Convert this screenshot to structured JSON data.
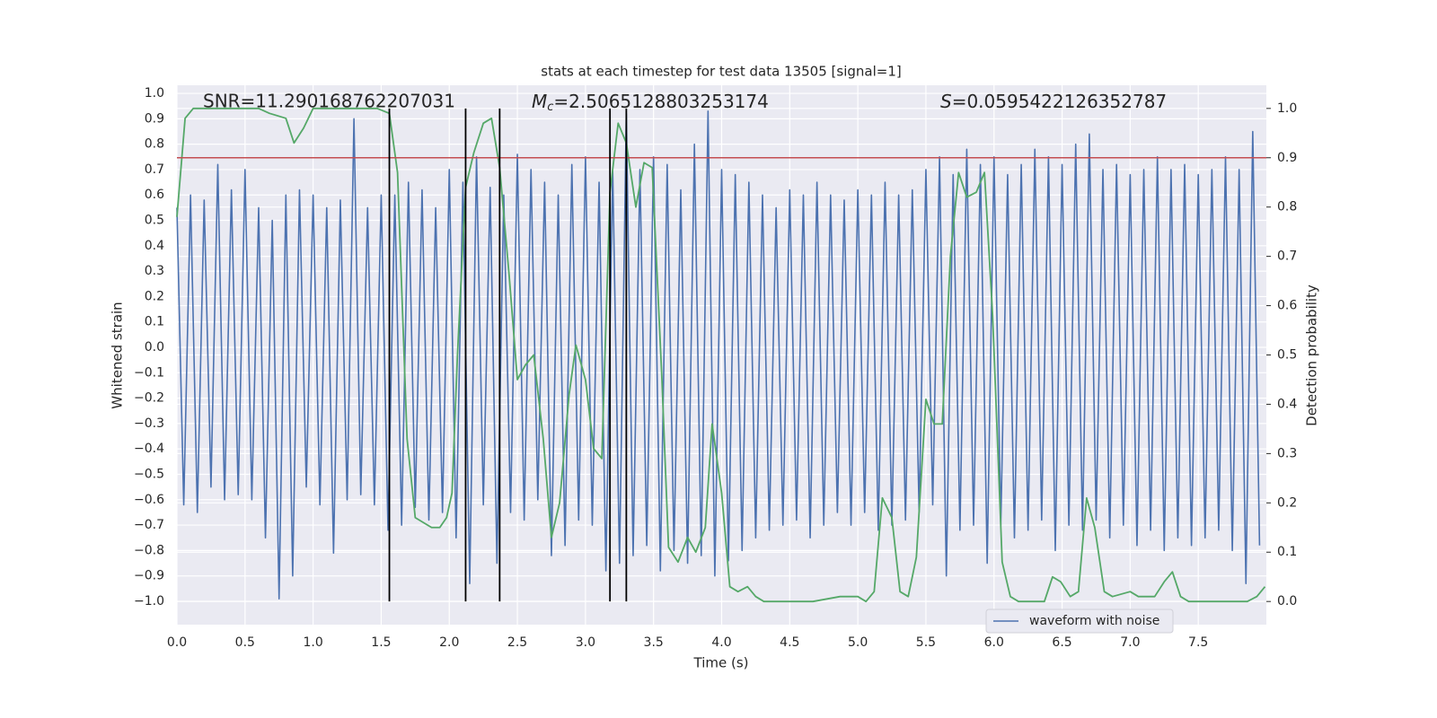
{
  "chart_data": {
    "type": "line",
    "title": "stats at each timestep for test data 13505 [signal=1]",
    "x_label": "Time (s)",
    "y_label": "Whitened strain",
    "y2_label": "Detection probability",
    "annotations": [
      {
        "text": "SNR=11.290168762207031"
      },
      {
        "symbol": "M",
        "subscript": "c",
        "text": "=2.5065128803253174"
      },
      {
        "symbol": "S",
        "text": "=0.0595422126352787"
      }
    ],
    "xlim": [
      0,
      8.0
    ],
    "ylim": [
      -1.092,
      1.032
    ],
    "y2lim": [
      -0.047,
      1.047
    ],
    "xticks": [
      {
        "value": 0,
        "label": "0.0"
      },
      0.5,
      {
        "value": 1,
        "label": "1.0"
      },
      1.5,
      {
        "value": 2,
        "label": "2.0"
      },
      2.5,
      {
        "value": 3,
        "label": "3.0"
      },
      3.5,
      {
        "value": 4,
        "label": "4.0"
      },
      4.5,
      {
        "value": 5,
        "label": "5.0"
      },
      5.5,
      {
        "value": 6,
        "label": "6.0"
      },
      6.5,
      {
        "value": 7,
        "label": "7.0"
      },
      7.5
    ],
    "yticks": [
      {
        "value": -1.0,
        "label": "−1.0"
      },
      {
        "value": -0.9,
        "label": "−0.9"
      },
      {
        "value": -0.8,
        "label": "−0.8"
      },
      {
        "value": -0.7,
        "label": "−0.7"
      },
      {
        "value": -0.6,
        "label": "−0.6"
      },
      {
        "value": -0.5,
        "label": "−0.5"
      },
      {
        "value": -0.4,
        "label": "−0.4"
      },
      {
        "value": -0.3,
        "label": "−0.3"
      },
      {
        "value": -0.2,
        "label": "−0.2"
      },
      {
        "value": -0.1,
        "label": "−0.1"
      },
      {
        "value": 0,
        "label": "0.0"
      },
      0.1,
      0.2,
      0.3,
      0.4,
      0.5,
      0.6,
      0.7,
      0.8,
      0.9,
      {
        "value": 1,
        "label": "1.0"
      }
    ],
    "y2ticks": [
      {
        "value": 0,
        "label": "0.0"
      },
      0.1,
      0.2,
      0.3,
      0.4,
      0.5,
      0.6,
      0.7,
      0.8,
      0.9,
      {
        "value": 1,
        "label": "1.0"
      }
    ],
    "grid": true,
    "legend": "lower right",
    "series": [
      {
        "name": "waveform with noise",
        "color": "#4c72b0",
        "axis": "y",
        "x": [
          0.0,
          0.05,
          0.1,
          0.15,
          0.2,
          0.25,
          0.3,
          0.35,
          0.4,
          0.45,
          0.5,
          0.55,
          0.6,
          0.65,
          0.7,
          0.75,
          0.8,
          0.85,
          0.9,
          0.95,
          1.0,
          1.05,
          1.1,
          1.15,
          1.2,
          1.25,
          1.3,
          1.35,
          1.4,
          1.45,
          1.5,
          1.55,
          1.6,
          1.65,
          1.7,
          1.75,
          1.8,
          1.85,
          1.9,
          1.95,
          2.0,
          2.05,
          2.1,
          2.15,
          2.2,
          2.25,
          2.3,
          2.35,
          2.4,
          2.45,
          2.5,
          2.55,
          2.6,
          2.65,
          2.7,
          2.75,
          2.8,
          2.85,
          2.9,
          2.95,
          3.0,
          3.05,
          3.1,
          3.15,
          3.2,
          3.25,
          3.3,
          3.35,
          3.4,
          3.45,
          3.5,
          3.55,
          3.6,
          3.65,
          3.7,
          3.75,
          3.8,
          3.85,
          3.9,
          3.95,
          4.0,
          4.05,
          4.1,
          4.15,
          4.2,
          4.25,
          4.3,
          4.35,
          4.4,
          4.45,
          4.5,
          4.55,
          4.6,
          4.65,
          4.7,
          4.75,
          4.8,
          4.85,
          4.9,
          4.95,
          5.0,
          5.05,
          5.1,
          5.15,
          5.2,
          5.25,
          5.3,
          5.35,
          5.4,
          5.45,
          5.5,
          5.55,
          5.6,
          5.65,
          5.7,
          5.75,
          5.8,
          5.85,
          5.9,
          5.95,
          6.0,
          6.05,
          6.1,
          6.15,
          6.2,
          6.25,
          6.3,
          6.35,
          6.4,
          6.45,
          6.5,
          6.55,
          6.6,
          6.65,
          6.7,
          6.75,
          6.8,
          6.85,
          6.9,
          6.95,
          7.0,
          7.05,
          7.1,
          7.15,
          7.2,
          7.25,
          7.3,
          7.35,
          7.4,
          7.45,
          7.5,
          7.55,
          7.6,
          7.65,
          7.7,
          7.75,
          7.8,
          7.85,
          7.9,
          7.95
        ],
        "values": [
          0.55,
          -0.62,
          0.6,
          -0.65,
          0.58,
          -0.55,
          0.72,
          -0.6,
          0.62,
          -0.58,
          0.7,
          -0.6,
          0.55,
          -0.75,
          0.5,
          -0.99,
          0.6,
          -0.9,
          0.62,
          -0.55,
          0.6,
          -0.62,
          0.55,
          -0.81,
          0.58,
          -0.6,
          0.9,
          -0.58,
          0.55,
          -0.62,
          0.6,
          -0.72,
          0.6,
          -0.7,
          0.65,
          -0.63,
          0.62,
          -0.68,
          0.55,
          -0.65,
          0.7,
          -0.75,
          0.65,
          -0.93,
          0.75,
          -0.62,
          0.63,
          -0.85,
          0.6,
          -0.65,
          0.76,
          -0.68,
          0.7,
          -0.6,
          0.65,
          -0.82,
          0.6,
          -0.78,
          0.72,
          -0.68,
          0.75,
          -0.7,
          0.65,
          -0.88,
          0.7,
          -0.85,
          0.92,
          -0.82,
          0.7,
          -0.78,
          0.75,
          -0.88,
          0.72,
          -0.8,
          0.62,
          -0.85,
          0.8,
          -0.82,
          0.93,
          -0.9,
          0.7,
          -0.84,
          0.68,
          -0.8,
          0.65,
          -0.75,
          0.6,
          -0.72,
          0.55,
          -0.7,
          0.62,
          -0.68,
          0.6,
          -0.75,
          0.65,
          -0.7,
          0.6,
          -0.65,
          0.58,
          -0.7,
          0.62,
          -0.65,
          0.6,
          -0.72,
          0.65,
          -0.7,
          0.6,
          -0.68,
          0.62,
          -0.65,
          0.7,
          -0.62,
          0.75,
          -0.9,
          0.68,
          -0.72,
          0.78,
          -0.7,
          0.72,
          -0.85,
          0.75,
          -0.7,
          0.68,
          -0.75,
          0.72,
          -0.72,
          0.78,
          -0.68,
          0.75,
          -0.8,
          0.72,
          -0.7,
          0.8,
          -0.72,
          0.84,
          -0.68,
          0.7,
          -0.75,
          0.72,
          -0.7,
          0.68,
          -0.78,
          0.7,
          -0.72,
          0.75,
          -0.8,
          0.7,
          -0.75,
          0.72,
          -0.78,
          0.68,
          -0.75,
          0.7,
          -0.72,
          0.75,
          -0.8,
          0.7,
          -0.93,
          0.85,
          -0.78
        ]
      },
      {
        "color": "#55a868",
        "axis": "y2",
        "x": [
          0.0,
          0.06,
          0.12,
          0.6,
          0.68,
          0.8,
          0.86,
          0.93,
          1.0,
          1.47,
          1.56,
          1.62,
          1.69,
          1.75,
          1.87,
          1.93,
          1.98,
          2.02,
          2.06,
          2.12,
          2.18,
          2.25,
          2.31,
          2.37,
          2.44,
          2.5,
          2.56,
          2.62,
          2.69,
          2.75,
          2.81,
          2.88,
          2.93,
          3.0,
          3.06,
          3.12,
          3.18,
          3.24,
          3.3,
          3.37,
          3.43,
          3.49,
          3.56,
          3.61,
          3.68,
          3.75,
          3.81,
          3.88,
          3.93,
          4.0,
          4.06,
          4.12,
          4.19,
          4.25,
          4.31,
          4.67,
          4.87,
          4.93,
          5.0,
          5.06,
          5.12,
          5.18,
          5.25,
          5.31,
          5.37,
          5.43,
          5.5,
          5.56,
          5.62,
          5.68,
          5.74,
          5.8,
          5.87,
          5.93,
          5.99,
          6.06,
          6.12,
          6.18,
          6.37,
          6.43,
          6.49,
          6.56,
          6.62,
          6.68,
          6.74,
          6.81,
          6.87,
          7.0,
          7.06,
          7.18,
          7.25,
          7.31,
          7.37,
          7.43,
          7.86,
          7.93,
          7.99
        ],
        "values": [
          0.78,
          0.98,
          1.0,
          1.0,
          0.99,
          0.98,
          0.93,
          0.96,
          1.0,
          1.0,
          0.99,
          0.87,
          0.33,
          0.17,
          0.15,
          0.15,
          0.17,
          0.22,
          0.5,
          0.84,
          0.91,
          0.97,
          0.98,
          0.88,
          0.66,
          0.45,
          0.48,
          0.5,
          0.33,
          0.13,
          0.2,
          0.42,
          0.52,
          0.45,
          0.31,
          0.29,
          0.83,
          0.97,
          0.93,
          0.8,
          0.89,
          0.88,
          0.46,
          0.11,
          0.08,
          0.13,
          0.1,
          0.15,
          0.36,
          0.22,
          0.03,
          0.02,
          0.03,
          0.01,
          0.0,
          0.0,
          0.01,
          0.01,
          0.01,
          0.0,
          0.02,
          0.21,
          0.17,
          0.02,
          0.01,
          0.09,
          0.41,
          0.36,
          0.36,
          0.7,
          0.87,
          0.82,
          0.83,
          0.87,
          0.58,
          0.08,
          0.01,
          0.0,
          0.0,
          0.05,
          0.04,
          0.01,
          0.02,
          0.21,
          0.15,
          0.02,
          0.01,
          0.02,
          0.01,
          0.01,
          0.04,
          0.06,
          0.01,
          0.0,
          0.0,
          0.01,
          0.03
        ]
      }
    ],
    "threshold": {
      "value": 0.9,
      "axis": "y2",
      "color": "#c44e52"
    },
    "vlines": {
      "x": [
        1.56,
        2.12,
        2.37,
        3.18,
        3.3
      ],
      "ymin": 0,
      "ymax": 1,
      "axis": "y2",
      "color": "#000000"
    }
  }
}
